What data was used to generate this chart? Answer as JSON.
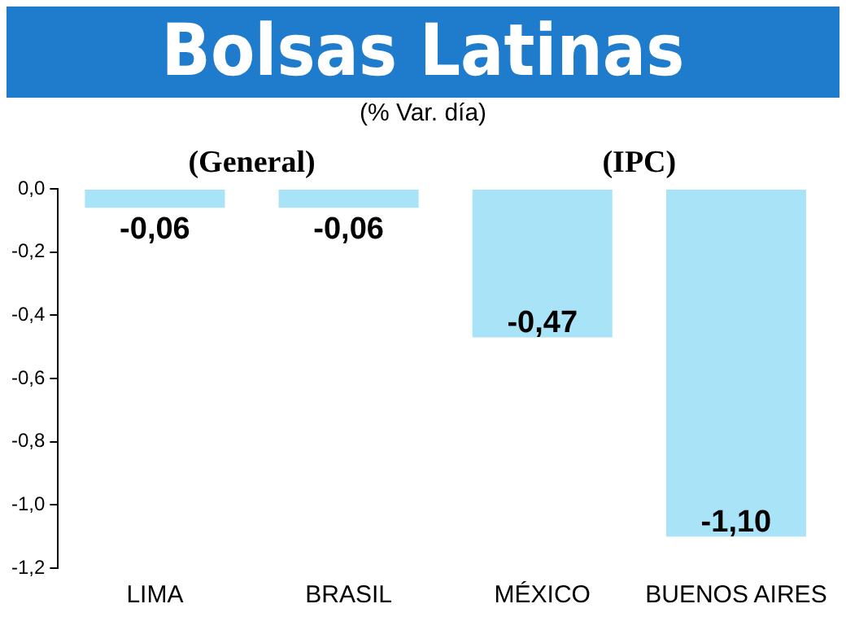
{
  "chart_data": {
    "type": "bar",
    "title": "Bolsas Latinas",
    "subtitle": "(% Var. día)",
    "categories": [
      "LIMA",
      "BRASIL",
      "MÉXICO",
      "BUENOS AIRES"
    ],
    "values": [
      -0.06,
      -0.06,
      -0.47,
      -1.1
    ],
    "value_labels": [
      "-0,06",
      "-0,06",
      "-0,47",
      "-1,10"
    ],
    "color": "#a9e3f7",
    "ylim": [
      -1.2,
      0
    ],
    "yticks": [
      {
        "value": 0,
        "label": "0,0"
      },
      {
        "value": -0.2,
        "label": "-0,2"
      },
      {
        "value": -0.4,
        "label": "-0,4"
      },
      {
        "value": -0.6,
        "label": "-0,6"
      },
      {
        "value": -0.8,
        "label": "-0,8"
      },
      {
        "value": -1.0,
        "label": "-1,0"
      },
      {
        "value": -1.2,
        "label": "-1,2"
      }
    ],
    "grid": false,
    "legend": false,
    "annotations": [
      "(General)",
      "(IPC)"
    ]
  }
}
